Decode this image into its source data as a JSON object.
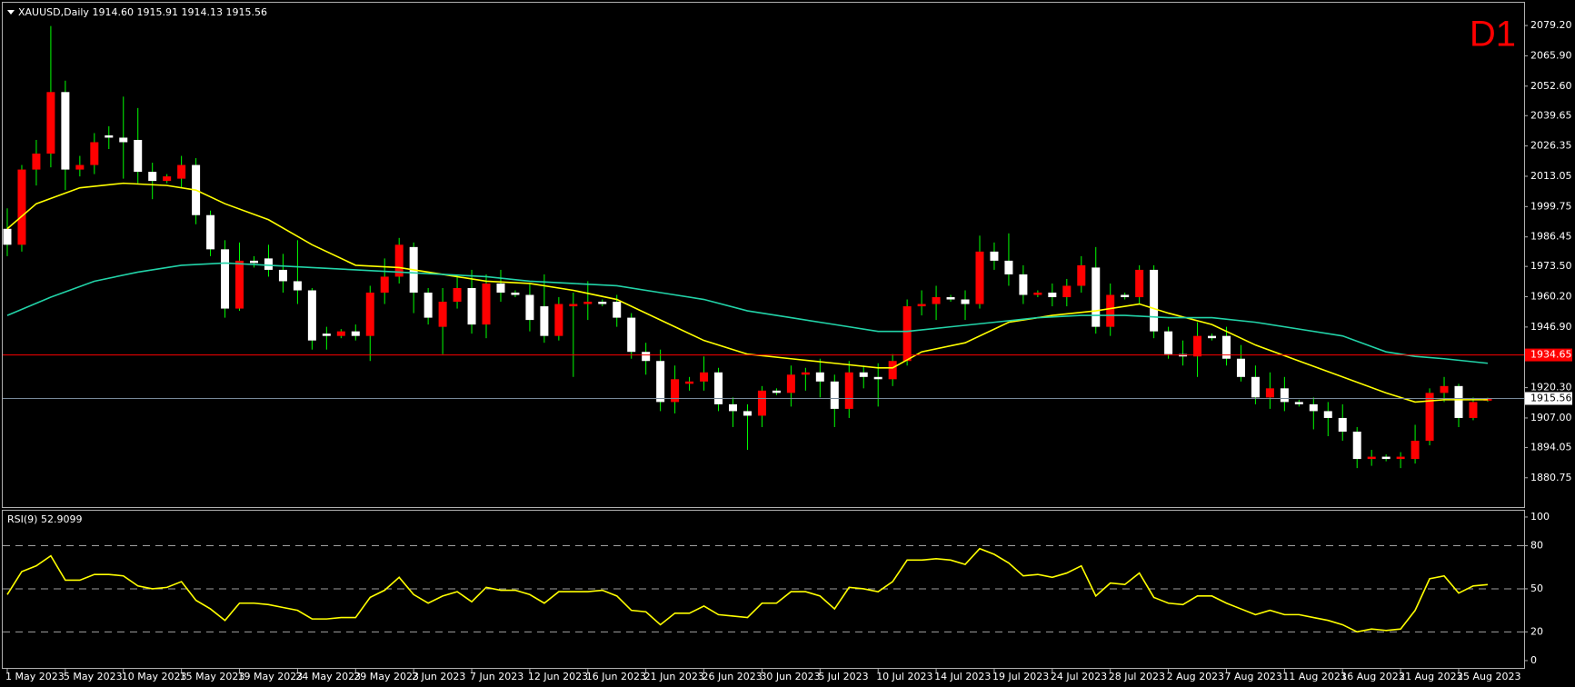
{
  "chart_data": [
    {
      "type": "candlestick",
      "title": "XAUUSD,Daily",
      "ohlc_labels": [
        "1914.60",
        "1915.91",
        "1914.13",
        "1915.56"
      ],
      "timeframe": "D1",
      "up_color": "#ff0000",
      "down_color": "#ffffff",
      "wick_color": "#00ff00",
      "open": [
        1990,
        1983,
        2016,
        2023,
        2050,
        2016,
        2018,
        2031,
        2030,
        2029,
        2015,
        2011,
        2012,
        2018,
        1996,
        1981,
        1955,
        1976,
        1977,
        1972,
        1967,
        1963,
        1944,
        1943,
        1945,
        1943,
        1962,
        1969,
        1982,
        1962,
        1947,
        1958,
        1964,
        1948,
        1966,
        1962,
        1961,
        1956,
        1943,
        1956,
        1957,
        1958,
        1958,
        1951,
        1936,
        1932,
        1914,
        1922,
        1923,
        1927,
        1913,
        1910,
        1908,
        1919,
        1918,
        1926,
        1927,
        1923,
        1911,
        1927,
        1925,
        1924,
        1932,
        1956,
        1957,
        1960,
        1959,
        1957,
        1980,
        1976,
        1970,
        1961,
        1962,
        1960,
        1965,
        1973,
        1947,
        1961,
        1960,
        1972,
        1945,
        1935,
        1934,
        1943,
        1943,
        1933,
        1925,
        1916,
        1920,
        1914,
        1913,
        1910,
        1907,
        1901,
        1889,
        1890,
        1889,
        1889,
        1897,
        1918,
        1921,
        1907,
        1914.6
      ],
      "high": [
        1999,
        2018,
        2029,
        2079,
        2055,
        2022,
        2032,
        2035,
        2048,
        2043,
        2019,
        2014,
        2022,
        2021,
        1998,
        1985,
        1984,
        1978,
        1983,
        1979,
        1985,
        1964,
        1947,
        1946,
        1948,
        1965,
        1977,
        1986,
        1984,
        1964,
        1964,
        1970,
        1972,
        1970,
        1972,
        1963,
        1966,
        1970,
        1960,
        1962,
        1967,
        1959,
        1961,
        1953,
        1940,
        1937,
        1930,
        1925,
        1934,
        1929,
        1916,
        1913,
        1921,
        1920,
        1930,
        1929,
        1933,
        1926,
        1932,
        1930,
        1931,
        1935,
        1959,
        1963,
        1965,
        1961,
        1963,
        1987,
        1984,
        1988,
        1974,
        1963,
        1966,
        1968,
        1978,
        1982,
        1966,
        1962,
        1974,
        1974,
        1947,
        1941,
        1949,
        1944,
        1947,
        1939,
        1930,
        1927,
        1925,
        1915,
        1916,
        1914,
        1913,
        1903,
        1893,
        1891,
        1892,
        1904,
        1920,
        1925,
        1922,
        1916,
        1915.91
      ],
      "low": [
        1978,
        1980,
        2009,
        2017,
        2007,
        2013,
        2014,
        2025,
        2012,
        2010,
        2003,
        2010,
        2008,
        1992,
        1978,
        1951,
        1954,
        1973,
        1969,
        1962,
        1957,
        1937,
        1937,
        1942,
        1941,
        1932,
        1957,
        1966,
        1953,
        1948,
        1935,
        1955,
        1944,
        1942,
        1958,
        1960,
        1945,
        1940,
        1941,
        1925,
        1950,
        1956,
        1947,
        1933,
        1926,
        1910,
        1909,
        1919,
        1919,
        1910,
        1903,
        1893,
        1903,
        1917,
        1912,
        1919,
        1916,
        1903,
        1907,
        1920,
        1912,
        1921,
        1930,
        1952,
        1950,
        1958,
        1950,
        1955,
        1972,
        1965,
        1957,
        1960,
        1956,
        1956,
        1962,
        1944,
        1943,
        1959,
        1957,
        1942,
        1933,
        1930,
        1925,
        1941,
        1930,
        1923,
        1913,
        1911,
        1910,
        1912,
        1902,
        1899,
        1897,
        1885,
        1886,
        1888,
        1885,
        1887,
        1895,
        1914,
        1903,
        1906,
        1914.13
      ],
      "close": [
        1983,
        2016,
        2023,
        2050,
        2016,
        2018,
        2028,
        2030,
        2028,
        2015,
        2011,
        2013,
        2018,
        1996,
        1981,
        1955,
        1976,
        1975,
        1972,
        1967,
        1963,
        1941,
        1943,
        1945,
        1943,
        1962,
        1969,
        1983,
        1962,
        1951,
        1958,
        1964,
        1948,
        1966,
        1962,
        1961,
        1950,
        1943,
        1957,
        1957,
        1958,
        1957,
        1951,
        1936,
        1932,
        1914,
        1924,
        1923,
        1927,
        1913,
        1910,
        1908,
        1919,
        1918,
        1926,
        1927,
        1923,
        1911,
        1927,
        1925,
        1924,
        1932,
        1956,
        1957,
        1960,
        1959,
        1957,
        1980,
        1976,
        1970,
        1961,
        1962,
        1960,
        1965,
        1974,
        1947,
        1961,
        1960,
        1972,
        1945,
        1935,
        1934,
        1943,
        1942,
        1933,
        1925,
        1916,
        1920,
        1914,
        1913,
        1910,
        1907,
        1901,
        1889,
        1890,
        1889,
        1890,
        1897,
        1918,
        1921,
        1907,
        1914,
        1915.56
      ],
      "overlays": [
        {
          "color": "#ffff00",
          "x": [
            0,
            2,
            5,
            8,
            11,
            13,
            15,
            18,
            21,
            24,
            27,
            30,
            33,
            36,
            39,
            42,
            45,
            48,
            51,
            54,
            57,
            60,
            61,
            63,
            66,
            69,
            72,
            75,
            78,
            80,
            83,
            86,
            89,
            92,
            95,
            97,
            99,
            102
          ],
          "values": [
            1990,
            2001,
            2008,
            2010,
            2009,
            2007,
            2001,
            1994,
            1983,
            1974,
            1973,
            1970,
            1967,
            1966,
            1963,
            1959,
            1950,
            1941,
            1935,
            1933,
            1931,
            1929,
            1929,
            1936,
            1940,
            1949,
            1952,
            1954,
            1957,
            1953,
            1948,
            1939,
            1932,
            1925,
            1918,
            1914,
            1915,
            1915
          ]
        },
        {
          "color": "#22d3a8",
          "x": [
            0,
            3,
            6,
            9,
            12,
            15,
            18,
            21,
            24,
            27,
            30,
            33,
            36,
            39,
            42,
            45,
            48,
            51,
            54,
            57,
            60,
            62,
            65,
            68,
            71,
            74,
            77,
            80,
            83,
            86,
            89,
            92,
            95,
            97,
            99,
            102
          ],
          "values": [
            1952,
            1960,
            1967,
            1971,
            1974,
            1975,
            1974,
            1973,
            1972,
            1971,
            1970,
            1969,
            1967,
            1966,
            1965,
            1962,
            1959,
            1954,
            1951,
            1948,
            1945,
            1945,
            1947,
            1949,
            1951,
            1952,
            1952,
            1951,
            1951,
            1949,
            1946,
            1943,
            1936,
            1934,
            1933,
            1931
          ]
        }
      ],
      "price_lines": [
        {
          "value": 1934.65,
          "color": "#ff0000"
        },
        {
          "value": 1915.56,
          "color": "#778899"
        }
      ],
      "ylim": [
        1867.9,
        2089.2
      ],
      "yticks": [
        {
          "value": 2079.2,
          "label": "2079.20"
        },
        {
          "value": 2065.9,
          "label": "2065.90"
        },
        {
          "value": 2052.6,
          "label": "2052.60"
        },
        2039.65,
        2026.35,
        2013.05,
        1999.75,
        1986.45,
        {
          "value": 1973.5,
          "label": "1973.50"
        },
        {
          "value": 1960.2,
          "label": "1960.20"
        },
        {
          "value": 1946.9,
          "label": "1946.90"
        },
        {
          "value": 1920.3,
          "label": "1920.30"
        },
        {
          "value": 1907,
          "label": "1907.00"
        },
        1894.05,
        1880.75
      ],
      "xticks": [
        {
          "value": 0,
          "label": "1 May 2023"
        },
        {
          "value": 4,
          "label": "5 May 2023"
        },
        {
          "value": 8,
          "label": "10 May 2023"
        },
        {
          "value": 12,
          "label": "15 May 2023"
        },
        {
          "value": 16,
          "label": "19 May 2023"
        },
        {
          "value": 20,
          "label": "24 May 2023"
        },
        {
          "value": 24,
          "label": "29 May 2023"
        },
        {
          "value": 28,
          "label": "2 Jun 2023"
        },
        {
          "value": 32,
          "label": "7 Jun 2023"
        },
        {
          "value": 36,
          "label": "12 Jun 2023"
        },
        {
          "value": 40,
          "label": "16 Jun 2023"
        },
        {
          "value": 44,
          "label": "21 Jun 2023"
        },
        {
          "value": 48,
          "label": "26 Jun 2023"
        },
        {
          "value": 52,
          "label": "30 Jun 2023"
        },
        {
          "value": 56,
          "label": "5 Jul 2023"
        },
        {
          "value": 60,
          "label": "10 Jul 2023"
        },
        {
          "value": 64,
          "label": "14 Jul 2023"
        },
        {
          "value": 68,
          "label": "19 Jul 2023"
        },
        {
          "value": 72,
          "label": "24 Jul 2023"
        },
        {
          "value": 76,
          "label": "28 Jul 2023"
        },
        {
          "value": 80,
          "label": "2 Aug 2023"
        },
        {
          "value": 84,
          "label": "7 Aug 2023"
        },
        {
          "value": 88,
          "label": "11 Aug 2023"
        },
        {
          "value": 92,
          "label": "16 Aug 2023"
        },
        {
          "value": 96,
          "label": "21 Aug 2023"
        },
        {
          "value": 100,
          "label": "25 Aug 2023"
        }
      ]
    },
    {
      "type": "line",
      "title": "RSI(9)",
      "last_value": 52.9099,
      "color": "#ffff00",
      "values": [
        46,
        62,
        66,
        73,
        56,
        56,
        60,
        60,
        59,
        52,
        50,
        51,
        55,
        42,
        36,
        28,
        40,
        40,
        39,
        37,
        35,
        29,
        29,
        30,
        30,
        44,
        49,
        58,
        46,
        40,
        45,
        48,
        41,
        51,
        49,
        49,
        46,
        40,
        48,
        48,
        48,
        49,
        45,
        35,
        34,
        25,
        33,
        33,
        38,
        32,
        31,
        30,
        40,
        40,
        48,
        48,
        45,
        36,
        51,
        50,
        48,
        55,
        70,
        70,
        71,
        70,
        67,
        78,
        74,
        68,
        59,
        60,
        58,
        61,
        66,
        45,
        54,
        53,
        61,
        44,
        40,
        39,
        45,
        45,
        40,
        36,
        32,
        35,
        32,
        32,
        30,
        28,
        25,
        20,
        22,
        21,
        22,
        35,
        57,
        59,
        47,
        52,
        52.9099
      ],
      "levels": [
        20,
        50,
        80
      ],
      "ylim": [
        -5.1,
        104.4
      ],
      "yticks": [
        0,
        20,
        50,
        80,
        100
      ]
    }
  ]
}
